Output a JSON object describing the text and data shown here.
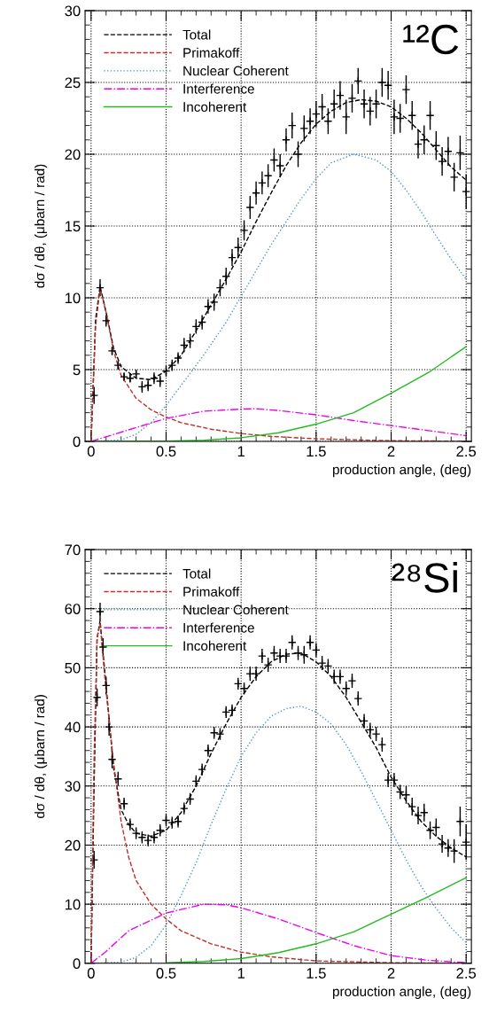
{
  "chart_data": [
    {
      "type": "line",
      "xlabel": "production angle, (deg)",
      "ylabel": "dσ / dθ, (μbarn / rad)",
      "annotations": [
        "¹²C"
      ],
      "xlim": [
        -0.04,
        2.535
      ],
      "ylim": [
        0,
        30
      ],
      "xticks": [
        0,
        0.5,
        1,
        1.5,
        2,
        2.5
      ],
      "yticks": [
        0,
        5,
        10,
        15,
        20,
        25,
        30
      ],
      "grid": true,
      "legend": "top left",
      "series": [
        {
          "type": "scatter",
          "marker": "cross",
          "color": "#000000",
          "x": [
            0.02,
            0.06,
            0.1,
            0.14,
            0.18,
            0.22,
            0.26,
            0.3,
            0.34,
            0.38,
            0.42,
            0.46,
            0.5,
            0.54,
            0.58,
            0.62,
            0.66,
            0.7,
            0.74,
            0.78,
            0.82,
            0.86,
            0.9,
            0.94,
            0.98,
            1.02,
            1.06,
            1.1,
            1.14,
            1.18,
            1.22,
            1.26,
            1.3,
            1.34,
            1.38,
            1.42,
            1.46,
            1.5,
            1.54,
            1.58,
            1.62,
            1.66,
            1.7,
            1.74,
            1.78,
            1.82,
            1.86,
            1.9,
            1.94,
            1.98,
            2.02,
            2.06,
            2.1,
            2.14,
            2.18,
            2.22,
            2.26,
            2.3,
            2.34,
            2.38,
            2.42,
            2.46,
            2.5
          ],
          "values": [
            3.2,
            10.7,
            8.4,
            6.3,
            5.3,
            4.5,
            4.4,
            4.7,
            3.8,
            3.9,
            4.4,
            4.2,
            4.9,
            5.3,
            5.8,
            6.7,
            7.0,
            8.0,
            8.3,
            9.4,
            9.7,
            10.7,
            11.5,
            12.8,
            13.5,
            14.7,
            16.3,
            17.3,
            18.0,
            18.5,
            19.6,
            19.2,
            21.0,
            22.0,
            20.0,
            21.8,
            22.3,
            22.8,
            23.3,
            22.3,
            23.5,
            24.1,
            22.6,
            23.9,
            25.1,
            23.5,
            23.0,
            23.5,
            25.0,
            24.8,
            22.6,
            22.5,
            24.5,
            22.7,
            20.7,
            21.0,
            22.7,
            20.6,
            19.5,
            20.2,
            18.4,
            20.1,
            17.4
          ],
          "errors": [
            0.6,
            0.6,
            0.4,
            0.3,
            0.3,
            0.3,
            0.3,
            0.3,
            0.4,
            0.4,
            0.4,
            0.4,
            0.4,
            0.4,
            0.4,
            0.5,
            0.5,
            0.5,
            0.5,
            0.5,
            0.6,
            0.6,
            0.6,
            0.6,
            0.7,
            0.7,
            0.8,
            0.8,
            0.8,
            0.8,
            0.8,
            0.8,
            0.8,
            0.9,
            0.9,
            0.9,
            0.9,
            0.9,
            0.9,
            0.9,
            1.0,
            1.0,
            1.2,
            1.0,
            0.9,
            1.0,
            1.0,
            1.0,
            1.0,
            1.0,
            1.2,
            1.0,
            1.0,
            1.0,
            1.0,
            1.0,
            1.0,
            1.0,
            1.0,
            1.0,
            1.0,
            1.2,
            1.2
          ]
        },
        {
          "name": "Total",
          "color": "#000000",
          "line_style": "dashed",
          "x": [
            0,
            0.03,
            0.06,
            0.1,
            0.15,
            0.2,
            0.3,
            0.4,
            0.5,
            0.6,
            0.7,
            0.8,
            0.9,
            1.0,
            1.1,
            1.2,
            1.3,
            1.4,
            1.5,
            1.6,
            1.7,
            1.8,
            1.9,
            2.0,
            2.1,
            2.2,
            2.3,
            2.4,
            2.5
          ],
          "values": [
            0,
            8.5,
            10.8,
            9,
            6.5,
            5.2,
            4.4,
            4.3,
            4.9,
            6,
            7.7,
            9.5,
            11.3,
            13.2,
            15.3,
            17.3,
            19.2,
            20.8,
            22.1,
            23.0,
            23.6,
            23.8,
            23.7,
            23.3,
            22.5,
            21.5,
            20.3,
            19.1,
            18.2
          ]
        },
        {
          "name": "Primakoff",
          "color": "#c0302a",
          "line_style": "dashed",
          "x": [
            0,
            0.03,
            0.06,
            0.1,
            0.15,
            0.2,
            0.3,
            0.4,
            0.5,
            0.6,
            0.8,
            1.0,
            1.2,
            1.5,
            2.0,
            2.5
          ],
          "values": [
            0,
            8,
            10.7,
            9,
            6.3,
            4.6,
            3,
            2.2,
            1.7,
            1.3,
            0.85,
            0.55,
            0.35,
            0.18,
            0.05,
            0.01
          ]
        },
        {
          "name": "Nuclear Coherent",
          "color": "#4f97c9",
          "line_style": "dotted",
          "x": [
            0,
            0.2,
            0.3,
            0.4,
            0.5,
            0.6,
            0.75,
            0.9,
            1.0,
            1.2,
            1.4,
            1.5,
            1.6,
            1.75,
            1.9,
            2.0,
            2.1,
            2.2,
            2.3,
            2.4,
            2.5
          ],
          "values": [
            0,
            0.1,
            0.5,
            1.3,
            2.5,
            3.9,
            6.0,
            8.3,
            10.1,
            13.7,
            16.9,
            18.3,
            19.4,
            20.0,
            19.6,
            18.8,
            17.5,
            16.0,
            14.3,
            12.7,
            11.3
          ]
        },
        {
          "name": "Interference",
          "color": "#ee00ee",
          "line_style": "dashdot",
          "x": [
            0,
            0.25,
            0.5,
            0.75,
            1.0,
            1.1,
            1.25,
            1.5,
            1.75,
            2.0,
            2.25,
            2.5
          ],
          "values": [
            0,
            0.8,
            1.6,
            2.1,
            2.25,
            2.27,
            2.15,
            1.85,
            1.45,
            1.1,
            0.75,
            0.4
          ]
        },
        {
          "name": "Incoherent",
          "color": "#22bb22",
          "line_style": "solid",
          "x": [
            0,
            0.5,
            0.75,
            1.0,
            1.25,
            1.5,
            1.75,
            2.0,
            2.25,
            2.5
          ],
          "values": [
            0,
            0.02,
            0.08,
            0.25,
            0.6,
            1.2,
            2.0,
            3.35,
            4.8,
            6.6
          ]
        }
      ]
    },
    {
      "type": "line",
      "xlabel": "production angle, (deg)",
      "ylabel": "dσ / dθ, (μbarn / rad)",
      "annotations": [
        "²⁸Si"
      ],
      "xlim": [
        -0.04,
        2.535
      ],
      "ylim": [
        0,
        70
      ],
      "xticks": [
        0,
        0.5,
        1,
        1.5,
        2,
        2.5
      ],
      "yticks": [
        0,
        10,
        20,
        30,
        40,
        50,
        60,
        70
      ],
      "grid": true,
      "legend": "top left",
      "series": [
        {
          "type": "scatter",
          "marker": "cross",
          "color": "#000000",
          "x": [
            0.02,
            0.04,
            0.06,
            0.08,
            0.1,
            0.12,
            0.14,
            0.18,
            0.22,
            0.26,
            0.3,
            0.34,
            0.38,
            0.42,
            0.46,
            0.5,
            0.54,
            0.58,
            0.62,
            0.66,
            0.7,
            0.74,
            0.78,
            0.82,
            0.86,
            0.9,
            0.94,
            0.98,
            1.02,
            1.06,
            1.1,
            1.14,
            1.18,
            1.22,
            1.26,
            1.3,
            1.34,
            1.38,
            1.42,
            1.46,
            1.5,
            1.54,
            1.58,
            1.62,
            1.66,
            1.7,
            1.74,
            1.78,
            1.82,
            1.86,
            1.9,
            1.94,
            1.98,
            2.02,
            2.06,
            2.1,
            2.14,
            2.18,
            2.22,
            2.26,
            2.3,
            2.34,
            2.38,
            2.42,
            2.46,
            2.5
          ],
          "values": [
            17.5,
            45,
            59.5,
            53.5,
            47,
            40,
            34.5,
            31.2,
            27,
            23.5,
            22,
            21.3,
            20.8,
            21.3,
            22.5,
            24.2,
            23.8,
            24,
            26.2,
            27.8,
            30.8,
            32.8,
            36,
            39,
            38.8,
            42.5,
            42.8,
            47.3,
            46.5,
            49,
            49,
            52,
            50.5,
            52.5,
            52,
            52,
            54.3,
            52.5,
            52.2,
            54.3,
            53,
            50.8,
            50.3,
            48.5,
            48.5,
            46.5,
            47.8,
            44.8,
            41,
            39.5,
            38.8,
            37,
            31,
            31,
            29,
            28.5,
            26.5,
            25,
            25.5,
            22.5,
            23,
            20.2,
            19.5,
            19,
            24,
            20.5
          ],
          "errors": [
            1.5,
            1.5,
            1.5,
            1.5,
            1.5,
            1.5,
            1.5,
            1.2,
            1,
            1,
            1,
            1,
            1,
            1,
            1,
            1,
            1,
            1,
            1,
            1,
            1,
            1,
            1,
            1,
            1,
            1,
            1,
            1,
            1,
            1.2,
            1.2,
            1.2,
            1.2,
            1.2,
            1.2,
            1.2,
            1.2,
            1.2,
            1.5,
            1.2,
            1.2,
            1.2,
            1.2,
            1.2,
            1.2,
            1.2,
            1.2,
            1.2,
            1.2,
            1.2,
            1.2,
            1.2,
            1.2,
            1.2,
            1.2,
            1.5,
            1.5,
            1.5,
            1.5,
            1.5,
            1.5,
            1.5,
            1.5,
            2,
            2.5,
            3
          ]
        },
        {
          "name": "Total",
          "color": "#000000",
          "line_style": "dashed",
          "x": [
            0,
            0.02,
            0.04,
            0.06,
            0.1,
            0.15,
            0.2,
            0.25,
            0.3,
            0.4,
            0.5,
            0.6,
            0.7,
            0.8,
            0.9,
            1.0,
            1.1,
            1.2,
            1.3,
            1.4,
            1.5,
            1.6,
            1.7,
            1.8,
            1.9,
            2.0,
            2.1,
            2.2,
            2.3,
            2.4,
            2.5
          ],
          "values": [
            0,
            30,
            55,
            58,
            47,
            33,
            26,
            23.5,
            22,
            21.5,
            22.5,
            25.5,
            30,
            35.5,
            40.5,
            45,
            48.5,
            51,
            52.3,
            52.5,
            51,
            48.5,
            45,
            40.8,
            36.5,
            31.5,
            27.5,
            24,
            21.5,
            19.5,
            18
          ]
        },
        {
          "name": "Primakoff",
          "color": "#c0302a",
          "line_style": "dashed",
          "x": [
            0,
            0.02,
            0.04,
            0.06,
            0.1,
            0.15,
            0.2,
            0.25,
            0.3,
            0.4,
            0.5,
            0.6,
            0.8,
            1.0,
            1.2,
            1.5,
            2.0,
            2.5
          ],
          "values": [
            0,
            35,
            55,
            57.5,
            46,
            34,
            24,
            18,
            14,
            10,
            7.5,
            5.5,
            3.3,
            1.9,
            1.1,
            0.4,
            0.1,
            0
          ]
        },
        {
          "name": "Nuclear Coherent",
          "color": "#4f97c9",
          "line_style": "dotted",
          "x": [
            0,
            0.2,
            0.3,
            0.4,
            0.5,
            0.6,
            0.7,
            0.8,
            0.9,
            1.0,
            1.1,
            1.2,
            1.3,
            1.4,
            1.5,
            1.6,
            1.7,
            1.8,
            1.9,
            2.0,
            2.1,
            2.2,
            2.3,
            2.4,
            2.5
          ],
          "values": [
            0,
            0.2,
            1,
            3,
            6.5,
            11.5,
            17,
            23.5,
            29.5,
            35,
            39,
            41.8,
            43.1,
            43.5,
            42.5,
            40.5,
            37,
            32.5,
            27.5,
            22.5,
            17.5,
            13,
            9.3,
            6,
            3.5
          ]
        },
        {
          "name": "Interference",
          "color": "#ee00ee",
          "line_style": "dashdot",
          "x": [
            0,
            0.1,
            0.25,
            0.5,
            0.75,
            0.9,
            1.0,
            1.25,
            1.5,
            1.75,
            2.0,
            2.25,
            2.5
          ],
          "values": [
            0,
            2,
            5.5,
            8.5,
            10,
            9.9,
            9.4,
            7.5,
            5.2,
            3,
            1.3,
            0.5,
            0.1
          ]
        },
        {
          "name": "Incoherent",
          "color": "#22bb22",
          "line_style": "solid",
          "x": [
            0.5,
            0.75,
            1.0,
            1.25,
            1.5,
            1.75,
            2.0,
            2.25,
            2.5
          ],
          "values": [
            0.1,
            0.3,
            0.8,
            1.8,
            3.3,
            5.3,
            8.3,
            11.3,
            14.5
          ]
        }
      ]
    }
  ]
}
